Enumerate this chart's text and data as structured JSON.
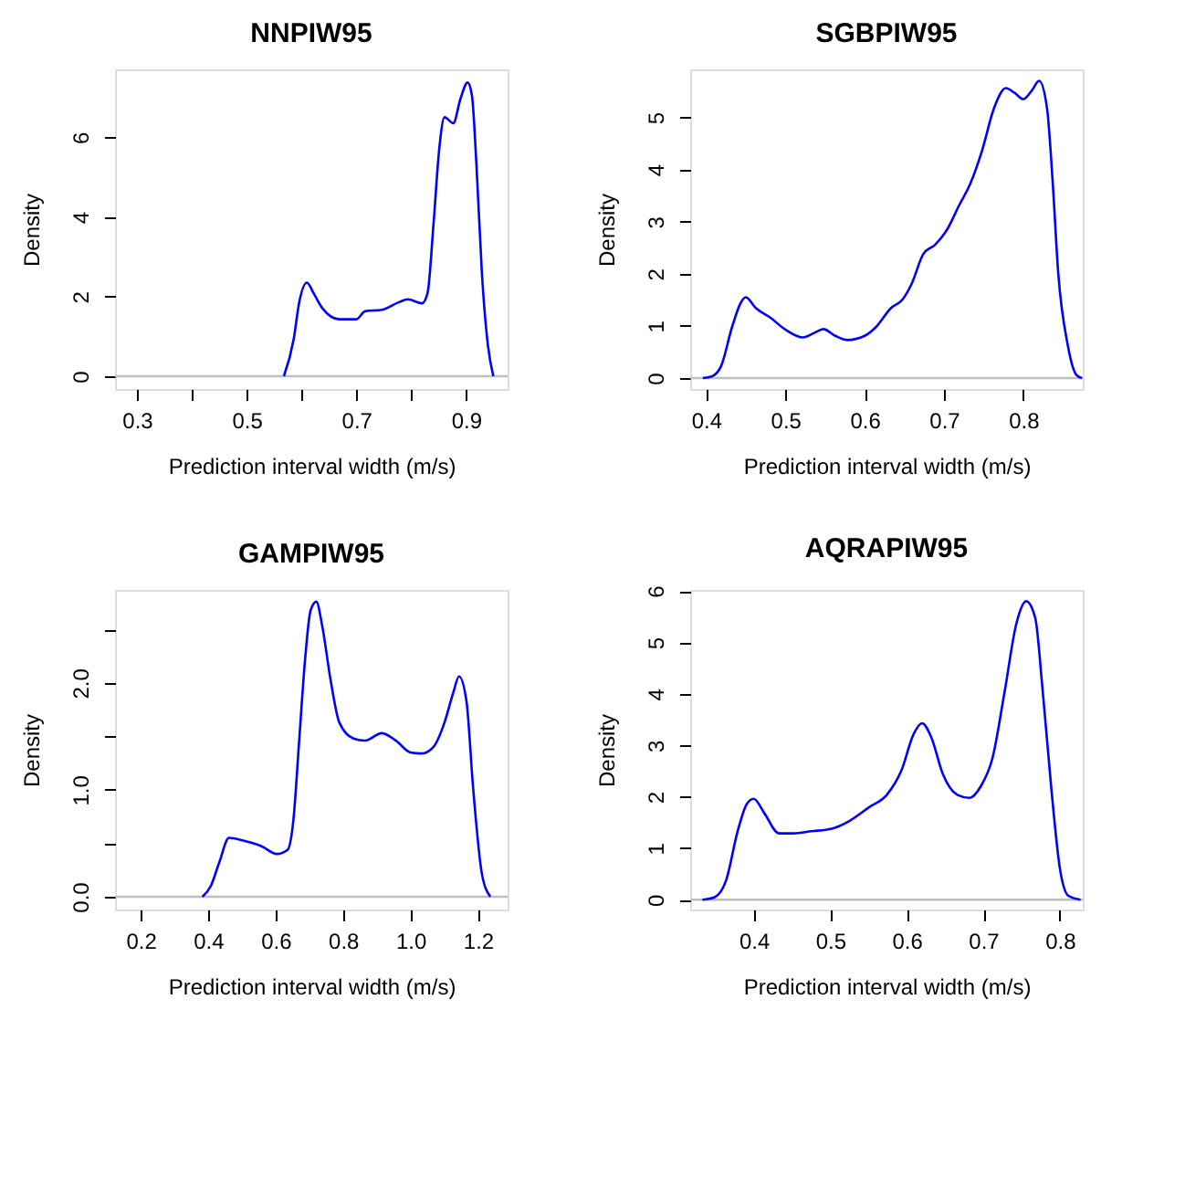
{
  "chart_data": [
    {
      "type": "line",
      "title": "NNPIW95",
      "xlabel": "Prediction interval width (m/s)",
      "ylabel": "Density",
      "grid": false,
      "line_style": "solid",
      "marker": "none",
      "xlim": [
        0.26,
        0.976
      ],
      "xticks": [
        0.3,
        {
          "value": 0.4,
          "label": null
        },
        0.5,
        {
          "value": 0.6,
          "label": null
        },
        0.7,
        {
          "value": 0.8,
          "label": null
        },
        0.9
      ],
      "ylim": [
        -0.32,
        7.7
      ],
      "yticks": [
        0,
        2,
        4,
        6
      ],
      "ref_lines": [
        {
          "axis": "y",
          "value": 0,
          "color": "#bebebe"
        }
      ],
      "series": [
        {
          "color": "#0000ff",
          "x": [
            0.568,
            0.586,
            0.596,
            0.61,
            0.622,
            0.638,
            0.669,
            0.7,
            0.716,
            0.747,
            0.778,
            0.794,
            0.82,
            0.83,
            0.841,
            0.851,
            0.861,
            0.877,
            0.89,
            0.903,
            0.911,
            0.919,
            0.929,
            0.94,
            0.95
          ],
          "values": [
            0,
            0.94,
            1.86,
            2.35,
            2.09,
            1.71,
            1.43,
            1.43,
            1.63,
            1.67,
            1.86,
            1.93,
            1.83,
            2.09,
            3.84,
            5.66,
            6.5,
            6.35,
            6.96,
            7.37,
            7.04,
            5.36,
            2.62,
            0.79,
            0
          ]
        }
      ]
    },
    {
      "type": "line",
      "title": "SGBPIW95",
      "xlabel": "Prediction interval width (m/s)",
      "ylabel": "Density",
      "grid": false,
      "line_style": "solid",
      "marker": "none",
      "xlim": [
        0.38,
        0.875
      ],
      "xticks": [
        0.4,
        0.5,
        0.6,
        0.7,
        0.8
      ],
      "ylim": [
        -0.21,
        5.92
      ],
      "yticks": [
        0,
        1,
        2,
        3,
        4,
        5
      ],
      "ref_lines": [
        {
          "axis": "y",
          "value": 0,
          "color": "#bebebe"
        }
      ],
      "series": [
        {
          "color": "#0000ff",
          "x": [
            0.396,
            0.407,
            0.419,
            0.433,
            0.444,
            0.45,
            0.463,
            0.481,
            0.5,
            0.522,
            0.537,
            0.548,
            0.563,
            0.578,
            0.6,
            0.615,
            0.633,
            0.648,
            0.659,
            0.674,
            0.689,
            0.704,
            0.719,
            0.733,
            0.748,
            0.763,
            0.778,
            0.789,
            0.8,
            0.811,
            0.82,
            0.83,
            0.837,
            0.844,
            0.856,
            0.867,
            0.874
          ],
          "values": [
            0,
            0.03,
            0.23,
            0.99,
            1.45,
            1.55,
            1.34,
            1.16,
            0.93,
            0.78,
            0.87,
            0.94,
            0.81,
            0.73,
            0.81,
            0.99,
            1.34,
            1.51,
            1.8,
            2.38,
            2.56,
            2.85,
            3.31,
            3.72,
            4.36,
            5.17,
            5.56,
            5.47,
            5.35,
            5.52,
            5.7,
            5.17,
            3.78,
            2.03,
            0.64,
            0.06,
            0
          ]
        }
      ]
    },
    {
      "type": "line",
      "title": "GAMPIW95",
      "xlabel": "Prediction interval width (m/s)",
      "ylabel": "Density",
      "grid": false,
      "line_style": "solid",
      "marker": "none",
      "xlim": [
        0.124,
        1.288
      ],
      "xticks": [
        0.2,
        0.4,
        0.6,
        0.8,
        {
          "value": 1.0,
          "label": "1.0"
        },
        1.2
      ],
      "ylim": [
        -0.12,
        2.87
      ],
      "yticks": [
        {
          "value": 0,
          "label": "0.0"
        },
        {
          "value": 0.5,
          "label": null
        },
        {
          "value": 1,
          "label": "1.0"
        },
        {
          "value": 1.5,
          "label": null
        },
        {
          "value": 2,
          "label": "2.0"
        },
        {
          "value": 2.5,
          "label": null
        }
      ],
      "ref_lines": [
        {
          "axis": "y",
          "value": 0,
          "color": "#bebebe"
        }
      ],
      "series": [
        {
          "color": "#0000ff",
          "x": [
            0.383,
            0.408,
            0.433,
            0.462,
            0.509,
            0.56,
            0.603,
            0.636,
            0.653,
            0.67,
            0.687,
            0.704,
            0.721,
            0.738,
            0.763,
            0.789,
            0.831,
            0.865,
            0.915,
            0.957,
            1.0,
            1.033,
            1.068,
            1.101,
            1.127,
            1.144,
            1.166,
            1.186,
            1.212,
            1.237
          ],
          "values": [
            0,
            0.1,
            0.32,
            0.55,
            0.52,
            0.47,
            0.4,
            0.44,
            0.72,
            1.46,
            2.2,
            2.68,
            2.76,
            2.54,
            2.03,
            1.63,
            1.48,
            1.46,
            1.53,
            1.46,
            1.35,
            1.34,
            1.4,
            1.63,
            1.91,
            2.06,
            1.83,
            1.01,
            0.21,
            0
          ]
        }
      ]
    },
    {
      "type": "line",
      "title": "AQRAPIW95",
      "xlabel": "Prediction interval width (m/s)",
      "ylabel": "Density",
      "grid": false,
      "line_style": "solid",
      "marker": "none",
      "xlim": [
        0.317,
        0.83
      ],
      "xticks": [
        0.4,
        0.5,
        0.6,
        0.7,
        0.8
      ],
      "ylim": [
        -0.19,
        6.02
      ],
      "yticks": [
        0,
        1,
        2,
        3,
        4,
        5,
        6
      ],
      "ref_lines": [
        {
          "axis": "y",
          "value": 0,
          "color": "#bebebe"
        }
      ],
      "series": [
        {
          "color": "#0000ff",
          "x": [
            0.333,
            0.349,
            0.364,
            0.379,
            0.391,
            0.4,
            0.414,
            0.433,
            0.452,
            0.475,
            0.502,
            0.525,
            0.551,
            0.574,
            0.593,
            0.609,
            0.62,
            0.632,
            0.647,
            0.666,
            0.682,
            0.697,
            0.712,
            0.728,
            0.743,
            0.756,
            0.768,
            0.777,
            0.789,
            0.8,
            0.811,
            0.827
          ],
          "values": [
            0,
            0.05,
            0.38,
            1.33,
            1.86,
            1.96,
            1.68,
            1.29,
            1.29,
            1.33,
            1.38,
            1.53,
            1.8,
            2.04,
            2.51,
            3.22,
            3.43,
            3.16,
            2.45,
            2.04,
            1.98,
            2.21,
            2.75,
            4.05,
            5.35,
            5.8,
            5.47,
            4.17,
            2.15,
            0.62,
            0.08,
            0
          ]
        }
      ]
    }
  ]
}
